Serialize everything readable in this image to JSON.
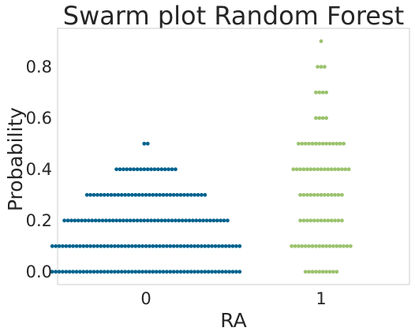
{
  "chart_data": {
    "type": "scatter",
    "subtype": "swarm",
    "title": "Swarm plot Random Forest",
    "xlabel": "RA",
    "ylabel": "Probability",
    "categories": [
      "0",
      "1"
    ],
    "ylim": [
      -0.05,
      0.95
    ],
    "yticks": [
      "0.0",
      "0.2",
      "0.4",
      "0.6",
      "0.8"
    ],
    "ytick_values": [
      0.0,
      0.2,
      0.4,
      0.6,
      0.8
    ],
    "grid": false,
    "series": [
      {
        "category": "0",
        "color": "#00638f",
        "levels": [
          {
            "y": 0.0,
            "count": 55
          },
          {
            "y": 0.1,
            "count": 55
          },
          {
            "y": 0.2,
            "count": 48
          },
          {
            "y": 0.3,
            "count": 35
          },
          {
            "y": 0.4,
            "count": 18
          },
          {
            "y": 0.5,
            "count": 2
          }
        ]
      },
      {
        "category": "1",
        "color": "#9cc36f",
        "levels": [
          {
            "y": 0.0,
            "count": 10
          },
          {
            "y": 0.1,
            "count": 18
          },
          {
            "y": 0.2,
            "count": 13
          },
          {
            "y": 0.3,
            "count": 13
          },
          {
            "y": 0.4,
            "count": 17
          },
          {
            "y": 0.5,
            "count": 14
          },
          {
            "y": 0.6,
            "count": 4
          },
          {
            "y": 0.7,
            "count": 4
          },
          {
            "y": 0.8,
            "count": 3
          },
          {
            "y": 0.9,
            "count": 1
          }
        ]
      }
    ]
  }
}
